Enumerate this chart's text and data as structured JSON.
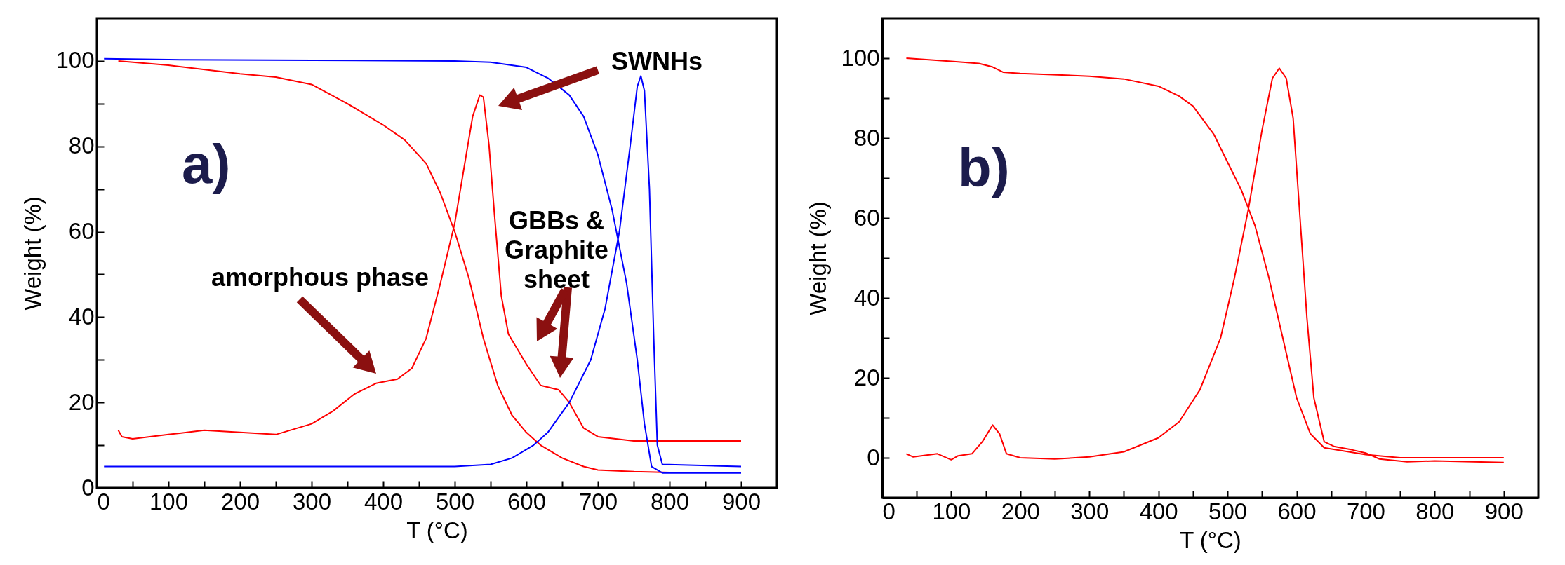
{
  "chart_data": [
    {
      "type": "line",
      "xlabel": "T (°C)",
      "ylabel": "Weight (%)",
      "xlim": [
        0,
        950
      ],
      "ylim": [
        0,
        110
      ],
      "xticks": [
        0,
        {
          "value": 50,
          "label": null
        },
        100,
        {
          "value": 150,
          "label": null
        },
        200,
        {
          "value": 250,
          "label": null
        },
        300,
        {
          "value": 350,
          "label": null
        },
        400,
        {
          "value": 450,
          "label": null
        },
        500,
        {
          "value": 550,
          "label": null
        },
        600,
        {
          "value": 650,
          "label": null
        },
        700,
        {
          "value": 750,
          "label": null
        },
        800,
        {
          "value": 850,
          "label": null
        },
        900
      ],
      "yticks": [
        0,
        {
          "value": 10,
          "label": null
        },
        20,
        {
          "value": 30,
          "label": null
        },
        40,
        {
          "value": 50,
          "label": null
        },
        60,
        {
          "value": 70,
          "label": null
        },
        80,
        {
          "value": 90,
          "label": null
        },
        100
      ],
      "series": [
        {
          "color": "#ff0000",
          "x": [
            30,
            100,
            200,
            250,
            300,
            350,
            400,
            430,
            460,
            480,
            500,
            520,
            540,
            560,
            580,
            600,
            620,
            650,
            680,
            700,
            750,
            800,
            900
          ],
          "values": [
            100,
            99,
            97,
            96.2,
            94.5,
            90,
            85,
            81.5,
            76,
            69,
            60,
            49,
            35,
            24,
            17,
            13,
            10,
            7,
            5,
            4.2,
            3.8,
            3.6,
            3.6
          ]
        },
        {
          "color": "#ff0000",
          "x": [
            30,
            35,
            50,
            100,
            150,
            200,
            250,
            300,
            330,
            360,
            390,
            420,
            440,
            460,
            480,
            500,
            515,
            525,
            535,
            540,
            548,
            555,
            565,
            575,
            600,
            620,
            645,
            660,
            680,
            700,
            750,
            800,
            850,
            900
          ],
          "values": [
            13.5,
            12,
            11.5,
            12.5,
            13.5,
            13,
            12.5,
            15,
            18,
            22,
            24.5,
            25.5,
            28,
            35,
            48,
            62,
            77,
            87,
            92,
            91.5,
            80,
            65,
            45,
            36,
            29,
            24,
            23,
            20,
            14,
            12,
            11,
            11,
            11,
            11
          ]
        },
        {
          "color": "#0000ff",
          "x": [
            10,
            100,
            500,
            550,
            600,
            630,
            660,
            680,
            700,
            720,
            740,
            755,
            765,
            775,
            790,
            900
          ],
          "values": [
            100.5,
            100.3,
            100,
            99.7,
            98.5,
            96,
            92,
            87,
            78,
            65,
            48,
            30,
            15,
            5,
            3.5,
            3.5
          ]
        },
        {
          "color": "#0000ff",
          "x": [
            10,
            500,
            550,
            580,
            610,
            630,
            660,
            690,
            710,
            730,
            745,
            755,
            760,
            765,
            772,
            778,
            783,
            790,
            900
          ],
          "values": [
            5,
            5,
            5.5,
            7,
            10,
            13,
            20,
            30,
            42,
            60,
            80,
            94,
            96.5,
            93,
            70,
            35,
            10,
            5.5,
            5
          ]
        }
      ],
      "annotations": [
        "a)",
        "SWNHs",
        "amorphous phase",
        "GBBs &\nGraphite\nsheet"
      ]
    },
    {
      "type": "line",
      "xlabel": "T (°C)",
      "ylabel": "Weight (%)",
      "xlim": [
        0,
        950
      ],
      "ylim": [
        -10,
        110
      ],
      "xticks": [
        0,
        {
          "value": 50,
          "label": null
        },
        100,
        {
          "value": 150,
          "label": null
        },
        200,
        {
          "value": 250,
          "label": null
        },
        300,
        {
          "value": 350,
          "label": null
        },
        400,
        {
          "value": 450,
          "label": null
        },
        500,
        {
          "value": 550,
          "label": null
        },
        600,
        {
          "value": 650,
          "label": null
        },
        700,
        {
          "value": 750,
          "label": null
        },
        800,
        {
          "value": 850,
          "label": null
        },
        900
      ],
      "yticks": [
        0,
        {
          "value": 10,
          "label": null
        },
        20,
        {
          "value": 30,
          "label": null
        },
        40,
        {
          "value": 50,
          "label": null
        },
        60,
        {
          "value": 70,
          "label": null
        },
        80,
        {
          "value": 90,
          "label": null
        },
        100
      ],
      "series": [
        {
          "color": "#ff0000",
          "x": [
            35,
            100,
            140,
            160,
            175,
            200,
            300,
            350,
            400,
            430,
            450,
            480,
            500,
            520,
            540,
            560,
            580,
            600,
            620,
            640,
            700,
            750,
            900
          ],
          "values": [
            100,
            99.2,
            98.7,
            97.8,
            96.5,
            96.2,
            95.5,
            94.8,
            93,
            90.5,
            88,
            81,
            74,
            67,
            58,
            45,
            30,
            15,
            6,
            2.5,
            0.8,
            0,
            0
          ]
        },
        {
          "color": "#ff0000",
          "x": [
            35,
            45,
            80,
            100,
            110,
            130,
            145,
            160,
            170,
            180,
            200,
            250,
            300,
            350,
            400,
            430,
            460,
            490,
            510,
            530,
            550,
            565,
            575,
            585,
            595,
            605,
            615,
            625,
            640,
            655,
            680,
            700,
            720,
            760,
            800,
            900
          ],
          "values": [
            1,
            0.2,
            1,
            -0.5,
            0.5,
            1,
            4,
            8.2,
            6,
            1,
            0,
            -0.3,
            0.2,
            1.5,
            5,
            9,
            17,
            30,
            45,
            62,
            82,
            95,
            97.5,
            95,
            85,
            60,
            35,
            15,
            4,
            2.8,
            2,
            1.2,
            -0.3,
            -1,
            -0.8,
            -1.2
          ]
        }
      ],
      "annotations": [
        "b)"
      ]
    }
  ]
}
